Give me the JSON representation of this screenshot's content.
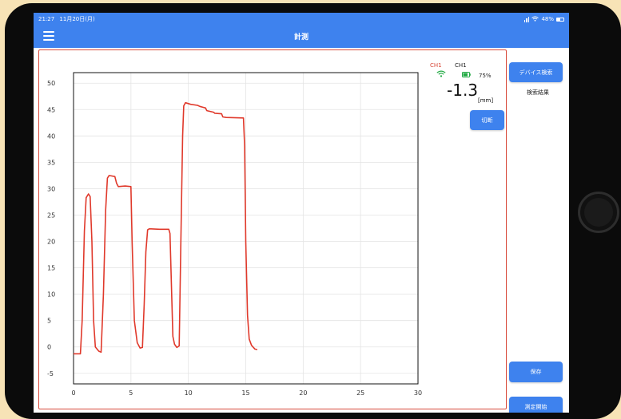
{
  "status_bar": {
    "time": "21:27",
    "date": "11月20日(月)",
    "battery_percent": "48%"
  },
  "nav": {
    "title": "計測"
  },
  "channel": {
    "label_wifi": "CH1",
    "label_battery": "CH1",
    "battery_level": "75%",
    "value": "-1.3",
    "unit": "[mm]",
    "disconnect_label": "切断",
    "wifi_color": "#d84a3a",
    "battery_color": "#22aa44"
  },
  "sidebar": {
    "device_search_label": "デバイス検索",
    "search_result_label": "検索結果",
    "save_label": "保存",
    "start_measure_label": "測定開始"
  },
  "colors": {
    "accent": "#3e82ee",
    "line": "#e0392b",
    "panel_border": "#d84a3a"
  },
  "chart_data": {
    "type": "line",
    "title": "",
    "xlabel": "",
    "ylabel": "",
    "xlim": [
      0,
      30
    ],
    "ylim": [
      -7,
      52
    ],
    "xticks": [
      0,
      5,
      10,
      15,
      20,
      25,
      30
    ],
    "yticks": [
      -5,
      0,
      5,
      10,
      15,
      20,
      25,
      30,
      35,
      40,
      45,
      50
    ],
    "grid": true,
    "series": [
      {
        "points": [
          [
            0,
            -1.3
          ],
          [
            0.6,
            -1.3
          ],
          [
            0.75,
            5
          ],
          [
            0.95,
            22
          ],
          [
            1.1,
            28.3
          ],
          [
            1.3,
            29
          ],
          [
            1.45,
            28.5
          ],
          [
            1.6,
            20
          ],
          [
            1.75,
            5
          ],
          [
            1.9,
            0
          ],
          [
            2.2,
            -0.8
          ],
          [
            2.4,
            -1
          ],
          [
            2.6,
            10
          ],
          [
            2.8,
            26
          ],
          [
            2.95,
            32
          ],
          [
            3.1,
            32.5
          ],
          [
            3.6,
            32.3
          ],
          [
            3.75,
            31
          ],
          [
            3.9,
            30.4
          ],
          [
            4.5,
            30.5
          ],
          [
            5.0,
            30.4
          ],
          [
            5.1,
            20
          ],
          [
            5.3,
            5
          ],
          [
            5.55,
            0.8
          ],
          [
            5.8,
            -0.2
          ],
          [
            6.0,
            -0.1
          ],
          [
            6.15,
            8
          ],
          [
            6.3,
            18
          ],
          [
            6.45,
            22.2
          ],
          [
            6.6,
            22.4
          ],
          [
            7.5,
            22.3
          ],
          [
            8.3,
            22.3
          ],
          [
            8.4,
            21.5
          ],
          [
            8.55,
            10
          ],
          [
            8.65,
            2
          ],
          [
            8.8,
            0.5
          ],
          [
            9.0,
            -0.1
          ],
          [
            9.2,
            0.2
          ],
          [
            9.35,
            20
          ],
          [
            9.5,
            40
          ],
          [
            9.6,
            45.7
          ],
          [
            9.75,
            46.3
          ],
          [
            10.2,
            46
          ],
          [
            10.8,
            45.8
          ],
          [
            11.0,
            45.6
          ],
          [
            11.5,
            45.3
          ],
          [
            11.6,
            44.8
          ],
          [
            12.2,
            44.5
          ],
          [
            12.3,
            44.3
          ],
          [
            12.9,
            44.2
          ],
          [
            13.0,
            43.6
          ],
          [
            13.3,
            43.5
          ],
          [
            14.8,
            43.4
          ],
          [
            14.9,
            38
          ],
          [
            15.0,
            20
          ],
          [
            15.15,
            6
          ],
          [
            15.3,
            1.5
          ],
          [
            15.5,
            0.3
          ],
          [
            15.8,
            -0.4
          ],
          [
            16.0,
            -0.5
          ]
        ]
      }
    ]
  }
}
